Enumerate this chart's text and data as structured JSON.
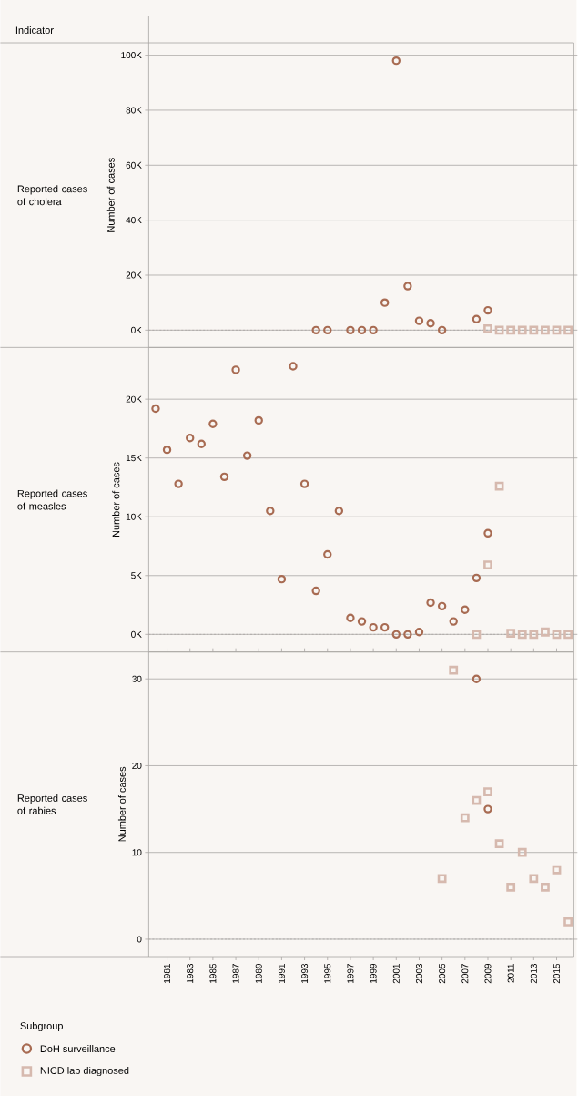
{
  "chart_data": [
    {
      "type": "scatter",
      "title": "Reported cases of cholera",
      "ylabel": "Number of cases",
      "annotations": [
        "Indicator"
      ],
      "legend": "bottom left",
      "legend_title": "Subgroup",
      "xlim": [
        1979.4,
        2016.5
      ],
      "xticks": [
        1981,
        1983,
        1985,
        1987,
        1989,
        1991,
        1993,
        1995,
        1997,
        1999,
        2001,
        2003,
        2005,
        2007,
        2009,
        2011,
        2013,
        2015
      ],
      "ylim": [
        -6300,
        104500
      ],
      "yticks": [
        {
          "value": 0,
          "label": "0K"
        },
        {
          "value": 20000,
          "label": "20K"
        },
        {
          "value": 40000,
          "label": "40K"
        },
        {
          "value": 60000,
          "label": "60K"
        },
        {
          "value": 80000,
          "label": "80K"
        },
        {
          "value": 100000,
          "label": "100K"
        }
      ],
      "grid": "y",
      "tick_labels": "y",
      "ref_lines": [
        {
          "axis": "y",
          "value": 0,
          "line_style": "dotted",
          "color": "#a9a6a3"
        }
      ],
      "series": [
        {
          "name": "DoH surveillance",
          "color": "#a86b52",
          "marker": "circle",
          "x": [
            1994,
            1995,
            1997,
            1998,
            1999,
            2000,
            2001,
            2002,
            2003,
            2004,
            2005,
            2008,
            2009
          ],
          "values": [
            0,
            0,
            0,
            0,
            0,
            10000,
            98000,
            16000,
            3400,
            2500,
            0,
            4000,
            7200
          ]
        },
        {
          "name": "NICD lab diagnosed",
          "color": "#d6b9ae",
          "marker": "square",
          "x": [
            2009,
            2010,
            2011,
            2012,
            2013,
            2014,
            2015,
            2016
          ],
          "values": [
            500,
            0,
            0,
            0,
            0,
            0,
            0,
            0
          ]
        }
      ]
    },
    {
      "type": "scatter",
      "title": "Reported cases of measles",
      "ylabel": "Number of cases",
      "xlim": [
        1979.4,
        2016.5
      ],
      "xticks": [
        1981,
        1983,
        1985,
        1987,
        1989,
        1991,
        1993,
        1995,
        1997,
        1999,
        2001,
        2003,
        2005,
        2007,
        2009,
        2011,
        2013,
        2015
      ],
      "ylim": [
        -1500,
        24400
      ],
      "yticks": [
        {
          "value": 0,
          "label": "0K"
        },
        {
          "value": 5000,
          "label": "5K"
        },
        {
          "value": 10000,
          "label": "10K"
        },
        {
          "value": 15000,
          "label": "15K"
        },
        {
          "value": 20000,
          "label": "20K"
        }
      ],
      "grid": "y",
      "tick_labels": "y",
      "ref_lines": [
        {
          "axis": "y",
          "value": 0,
          "line_style": "dotted",
          "color": "#a9a6a3"
        }
      ],
      "series": [
        {
          "color": "#a86b52",
          "marker": "circle",
          "x": [
            1980,
            1981,
            1982,
            1983,
            1984,
            1985,
            1986,
            1987,
            1988,
            1989,
            1990,
            1991,
            1992,
            1993,
            1994,
            1995,
            1996,
            1997,
            1998,
            1999,
            2000,
            2001,
            2002,
            2003,
            2004,
            2005,
            2006,
            2007,
            2008,
            2009
          ],
          "values": [
            19200,
            15700,
            12800,
            16700,
            16200,
            17900,
            13400,
            22500,
            15200,
            18200,
            10500,
            4700,
            22800,
            12800,
            3700,
            6800,
            10500,
            1400,
            1100,
            600,
            600,
            0,
            0,
            200,
            2700,
            2400,
            1100,
            2100,
            4800,
            8600
          ]
        },
        {
          "color": "#d6b9ae",
          "marker": "square",
          "x": [
            2008,
            2009,
            2010,
            2011,
            2012,
            2013,
            2014,
            2015,
            2016
          ],
          "values": [
            0,
            5900,
            12600,
            100,
            0,
            0,
            200,
            0,
            0
          ]
        }
      ]
    },
    {
      "type": "scatter",
      "title": "Reported cases of rabies",
      "ylabel": "Number of cases",
      "xlim": [
        1979.4,
        2016.5
      ],
      "xticks": [
        1981,
        1983,
        1985,
        1987,
        1989,
        1991,
        1993,
        1995,
        1997,
        1999,
        2001,
        2003,
        2005,
        2007,
        2009,
        2011,
        2013,
        2015
      ],
      "ylim": [
        -2,
        33.1
      ],
      "yticks": [
        0,
        10,
        20,
        30
      ],
      "grid": "y",
      "ref_lines": [
        {
          "axis": "y",
          "value": 0,
          "line_style": "dotted",
          "color": "#a9a6a3"
        }
      ],
      "series": [
        {
          "color": "#a86b52",
          "marker": "circle",
          "x": [
            2008,
            2009
          ],
          "values": [
            30,
            15
          ]
        },
        {
          "color": "#d6b9ae",
          "marker": "square",
          "x": [
            2005,
            2006,
            2007,
            2008,
            2009,
            2010,
            2011,
            2012,
            2013,
            2014,
            2015,
            2016
          ],
          "values": [
            7,
            31,
            14,
            16,
            17,
            11,
            6,
            10,
            7,
            6,
            8,
            2
          ]
        }
      ]
    }
  ]
}
